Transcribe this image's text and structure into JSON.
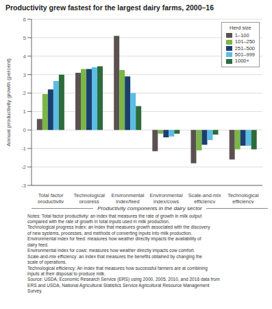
{
  "chart_data": {
    "type": "bar",
    "title": "Productivity grew fastest for the largest dairy farms, 2000–16",
    "ylabel": "Annual productivity growth (percent)",
    "xlabel": "Productivity components in the dairy sector",
    "categories": [
      "Total factor\nproductivity",
      "Technological\nprogress",
      "Environmental\nindex/feed",
      "Environmental\nindex/cows",
      "Scale-and-mix\nefficiency",
      "Technological\nefficiency"
    ],
    "series": [
      {
        "name": "1–100",
        "color": "#5a5150",
        "values": [
          0.6,
          3.1,
          5.1,
          -1.15,
          -1.8,
          -1.6
        ]
      },
      {
        "name": "101–250",
        "color": "#7ab648",
        "values": [
          1.95,
          3.3,
          3.25,
          -0.2,
          -1.1,
          -1.05
        ]
      },
      {
        "name": "251–500",
        "color": "#1b3f6e",
        "values": [
          2.2,
          3.3,
          2.9,
          -0.4,
          -0.8,
          -0.85
        ]
      },
      {
        "name": "501–999",
        "color": "#5bbde4",
        "values": [
          2.65,
          3.4,
          2.0,
          -0.35,
          -0.55,
          -0.85
        ]
      },
      {
        "name": "1000+",
        "color": "#2d6b3c",
        "values": [
          3.0,
          3.45,
          1.3,
          -0.2,
          -0.25,
          -1.05
        ]
      }
    ],
    "ylim": [
      -3,
      6
    ],
    "yticks": [
      -3,
      -2,
      -1,
      0,
      1,
      2,
      3,
      4,
      5,
      6
    ],
    "grid": true,
    "legend": "upper right",
    "legend_title": "Herd size",
    "notes": [
      "Notes: Total factor productivity: an index that measures the rate of growth in milk output",
      "compared with the rate of growth in total inputs used in milk production.",
      "Technological progress index: an index that measures growth associated with the discovery",
      "of new systems, processes, and methods of converting inputs into milk production.",
      "Environmental index for feed: measures how weather directly impacts the availability of",
      "dairy feed.",
      "Environmental index for cows: measures how weather directly impacts cow comfort.",
      "Scale-and-mix efficiency: an index that measures the benefits obtained by changing the",
      "scale of operations.",
      "Technological efficiency: An index that measures how successful farmers are at combining",
      "inputs at their disposal to produce milk.",
      "Source: USDA, Economic Research Service (ERS) using 2000, 2005, 2010, and 2016 data from",
      "ERS and USDA, National Agricultural Statistics Service Agricultural Resource Management",
      "Survey."
    ]
  }
}
